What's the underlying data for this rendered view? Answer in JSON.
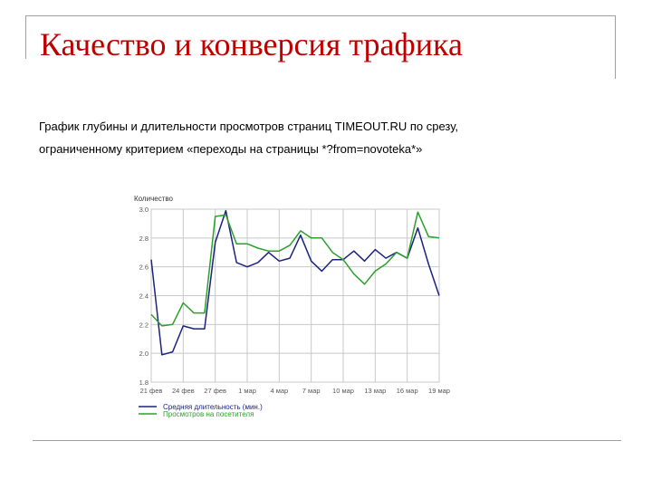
{
  "slide": {
    "title": "Качество и конверсия трафика",
    "subtitle_line1": "График глубины и длительности просмотров страниц TIMEOUT.RU по срезу,",
    "subtitle_line2": "ограниченному критерием «переходы на страницы *?from=novoteka*»"
  },
  "colors": {
    "title": "#c00000",
    "series_duration": "#1a237e",
    "series_pageviews": "#2ca02c",
    "grid": "#c8c8c8"
  },
  "chart_data": {
    "type": "line",
    "title": "",
    "ylabel": "Количество",
    "xlabel": "",
    "ylim": [
      1.8,
      3.0
    ],
    "yticks": [
      1.8,
      2.0,
      2.2,
      2.4,
      2.6,
      2.8,
      3.0
    ],
    "ytick_labels": [
      "1.8",
      "2.0",
      "2.2",
      "2.4",
      "2.6",
      "2.8",
      "3.0"
    ],
    "xtick_labels": [
      "21 фев",
      "24 фев",
      "27 фев",
      "1 мар",
      "4 мар",
      "7 мар",
      "10 мар",
      "13 мар",
      "16 мар",
      "19 мар"
    ],
    "xtick_positions": [
      0,
      3,
      6,
      9,
      12,
      15,
      18,
      21,
      24,
      27
    ],
    "x_count": 28,
    "grid": true,
    "legend_position": "bottom-left",
    "series": [
      {
        "name": "Средняя длительность (мин.)",
        "color": "#1a237e",
        "values": [
          2.65,
          1.99,
          2.01,
          2.19,
          2.17,
          2.17,
          2.77,
          2.99,
          2.63,
          2.6,
          2.63,
          2.7,
          2.64,
          2.66,
          2.82,
          2.64,
          2.57,
          2.65,
          2.65,
          2.71,
          2.64,
          2.72,
          2.66,
          2.7,
          2.66,
          2.87,
          2.62,
          2.4
        ]
      },
      {
        "name": "Просмотров на посетителя",
        "color": "#2ca02c",
        "values": [
          2.27,
          2.19,
          2.2,
          2.35,
          2.28,
          2.28,
          2.95,
          2.96,
          2.76,
          2.76,
          2.73,
          2.71,
          2.71,
          2.75,
          2.85,
          2.8,
          2.8,
          2.7,
          2.65,
          2.55,
          2.48,
          2.57,
          2.62,
          2.7,
          2.66,
          2.98,
          2.81,
          2.8
        ]
      }
    ]
  }
}
